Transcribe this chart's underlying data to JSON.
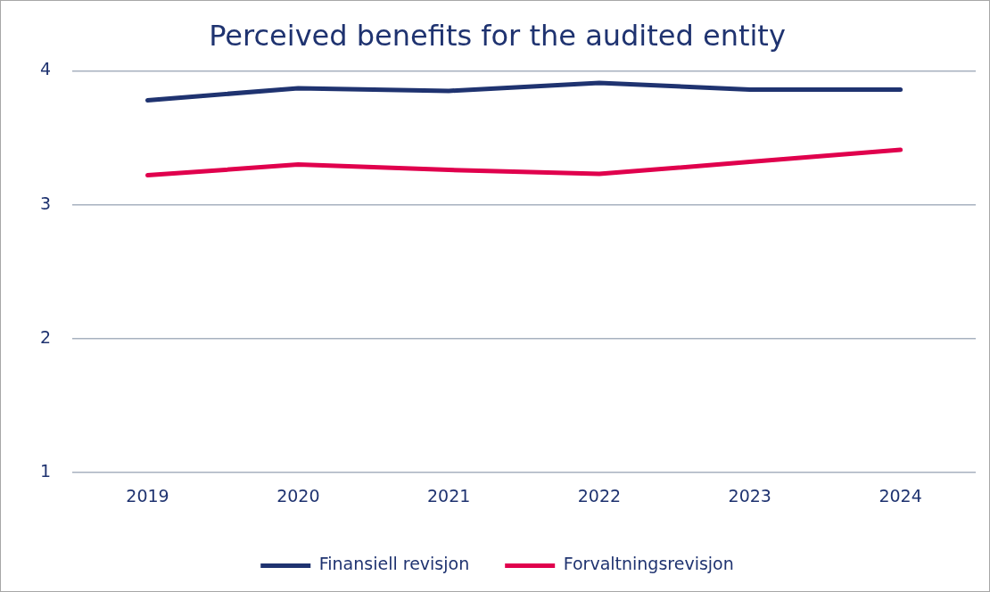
{
  "chart_data": {
    "type": "line",
    "title": "Perceived benefits for the audited entity",
    "categories": [
      "2019",
      "2020",
      "2021",
      "2022",
      "2023",
      "2024"
    ],
    "series": [
      {
        "name": "Finansiell revisjon",
        "color": "#1f3370",
        "values": [
          3.78,
          3.87,
          3.85,
          3.91,
          3.86,
          3.86
        ]
      },
      {
        "name": "Forvaltningsrevisjon",
        "color": "#e0004d",
        "values": [
          3.22,
          3.3,
          3.26,
          3.23,
          3.32,
          3.41
        ]
      }
    ],
    "ylim": [
      1,
      4
    ],
    "yticks": [
      1,
      2,
      3,
      4
    ],
    "grid": "y",
    "legend": "bottom",
    "marker": "none",
    "line_style": "solid"
  }
}
